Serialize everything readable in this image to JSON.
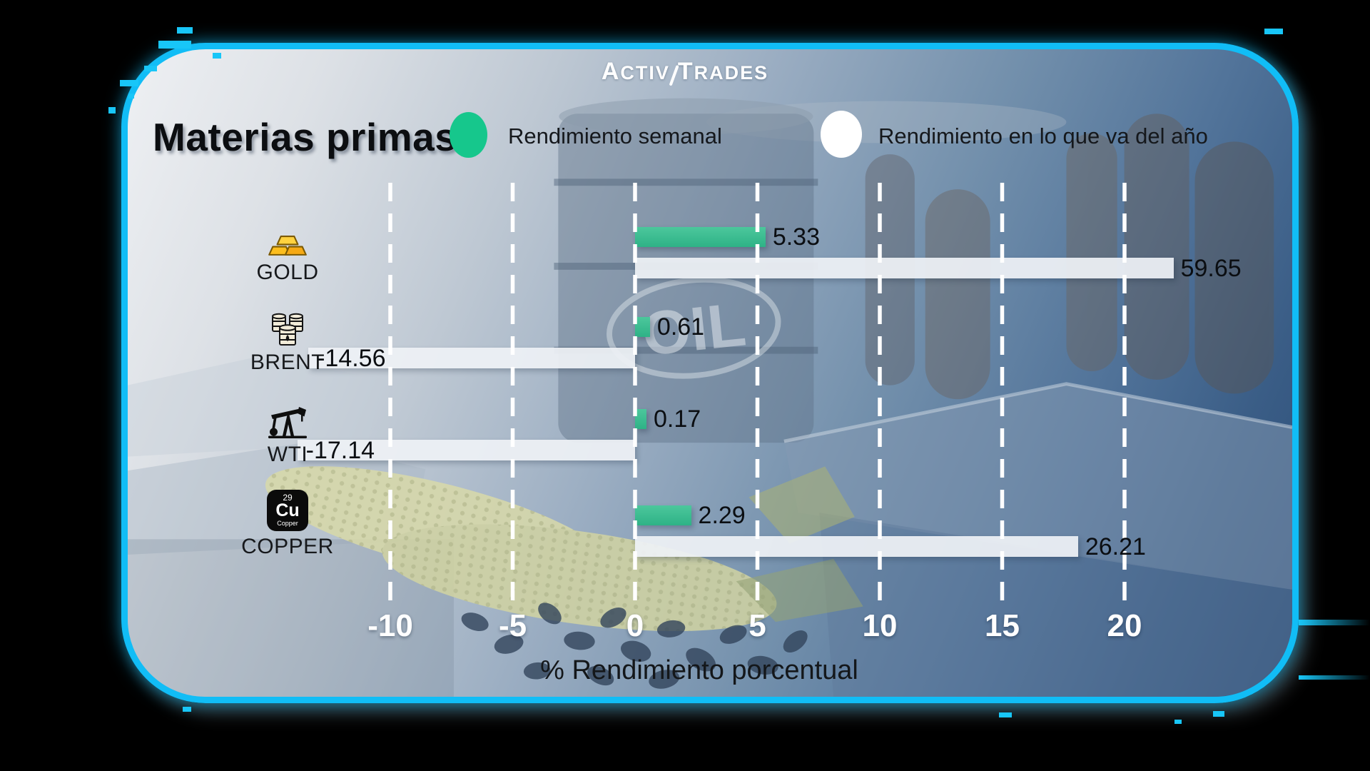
{
  "brand": {
    "logo_left": "Activ",
    "logo_right": "Trades"
  },
  "title": "Materias primas",
  "legend": {
    "weekly": {
      "label": "Rendimiento semanal",
      "color": "#16c78c"
    },
    "ytd": {
      "label": "Rendimiento en lo que va del año",
      "color": "#ffffff"
    }
  },
  "chart_data": {
    "type": "bar",
    "orientation": "horizontal",
    "title": "Materias primas",
    "categories": [
      "GOLD",
      "BRENT",
      "WTI",
      "COPPER"
    ],
    "series": [
      {
        "name": "Rendimiento semanal",
        "color": "#2fbd8e",
        "values": [
          5.33,
          0.61,
          0.17,
          2.29
        ]
      },
      {
        "name": "Rendimiento en lo que va del año",
        "color": "#eef1f5",
        "values": [
          59.65,
          -14.56,
          -17.14,
          26.21
        ]
      }
    ],
    "xlabel": "% Rendimiento porcentual",
    "x_ticks": [
      -10,
      -5,
      0,
      5,
      10,
      15,
      20
    ],
    "xlim": [
      -13.5,
      22.2
    ],
    "grid": "vertical-dashed-white",
    "legend_position": "top",
    "ytd_bar_display_extents": [
      22.0,
      -13.35,
      -13.8,
      18.1
    ],
    "watermark": "OIL"
  },
  "icons": [
    "gold-bars-icon",
    "oil-barrels-icon",
    "pump-jack-icon",
    "copper-element-icon"
  ],
  "copper_tile": {
    "number": "29",
    "symbol": "Cu",
    "name": "Copper"
  },
  "colors": {
    "frame_border": "#11bdf6",
    "background_outer": "#000000",
    "weekly_bar": "#2fbd8e",
    "ytd_bar": "#eef1f5",
    "tick_text": "#ffffff",
    "value_text": "#0b0e12"
  }
}
